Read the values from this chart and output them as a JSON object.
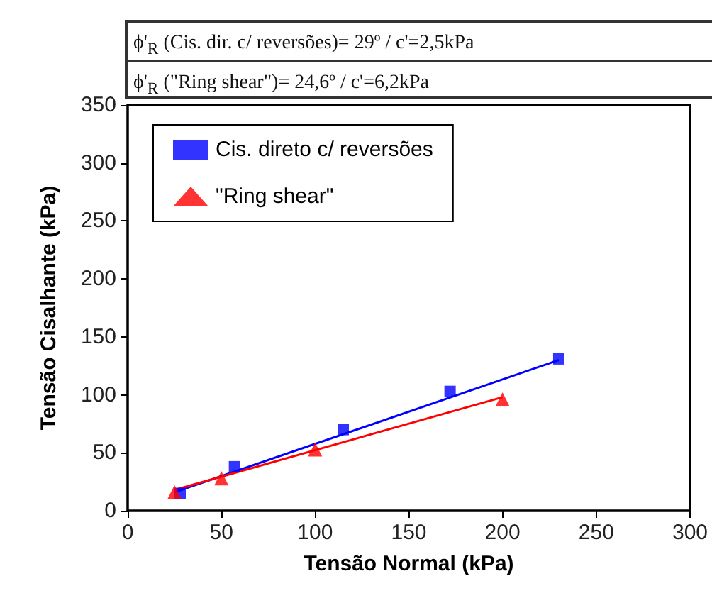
{
  "chart_data": {
    "type": "scatter",
    "xlabel": "Tensão Normal (kPa)",
    "ylabel": "Tensão Cisalhante (kPa)",
    "annotations": [
      "ϕ'$_{R}$ (Cis. dir. c/ reversões)= 29º / c'=2,5kPa",
      "ϕ'$_{R}$ (\"Ring shear\")= 24,6º / c'=6,2kPa"
    ],
    "xlim": [
      0,
      300
    ],
    "xticks": [
      0,
      50,
      100,
      150,
      200,
      250,
      300
    ],
    "ylim": [
      0,
      350
    ],
    "yticks": [
      0,
      50,
      100,
      150,
      200,
      250,
      300,
      350
    ],
    "grid": false,
    "legend": "top left",
    "series": [
      {
        "name": "Cis. direto c/ reversões",
        "color": "#0000ff",
        "marker": "square",
        "x": [
          28,
          57,
          115,
          172,
          230
        ],
        "values": [
          15,
          38,
          70,
          103,
          131
        ]
      },
      {
        "name": "\"Ring shear\"",
        "color": "#ff0000",
        "marker": "triangle",
        "x": [
          25,
          50,
          100,
          200
        ],
        "values": [
          16,
          28,
          53,
          96
        ]
      },
      {
        "type": "line",
        "color": "#0000ff",
        "marker": "none",
        "x": [
          25,
          230
        ],
        "values": [
          16,
          130
        ]
      },
      {
        "type": "line",
        "color": "#ff0000",
        "marker": "none",
        "x": [
          25,
          200
        ],
        "values": [
          18,
          98
        ]
      }
    ]
  }
}
